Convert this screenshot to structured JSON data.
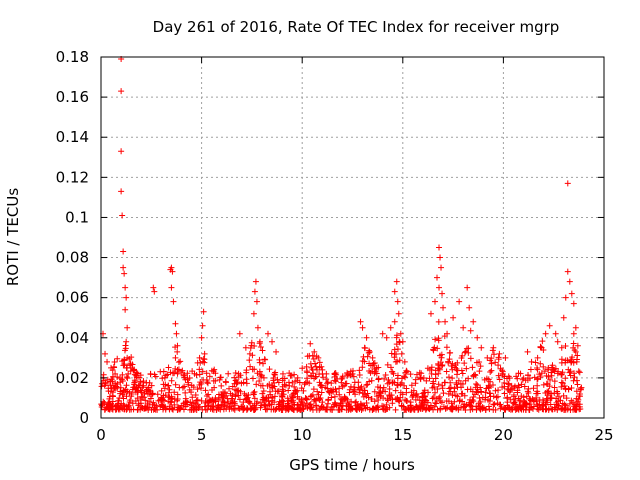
{
  "chart_data": {
    "type": "scatter",
    "title": "Day 261 of 2016, Rate Of TEC Index for receiver mgrp",
    "xlabel": "GPS time / hours",
    "ylabel": "ROTI / TECUs",
    "xlim": [
      0,
      25
    ],
    "ylim": [
      0,
      0.18
    ],
    "xticks": [
      "0",
      "5",
      "10",
      "15",
      "20",
      "25"
    ],
    "yticks": [
      "0",
      "0.02",
      "0.04",
      "0.06",
      "0.08",
      "0.1",
      "0.12",
      "0.14",
      "0.16",
      "0.18"
    ],
    "grid": true,
    "marker": "+",
    "colors": {
      "points": "#ff0000",
      "grid": "#a0a0a0",
      "axis": "#000000"
    },
    "series": [
      {
        "name": "ROTI",
        "points": [
          [
            1.0,
            0.179
          ],
          [
            1.0,
            0.163
          ],
          [
            1.0,
            0.133
          ],
          [
            1.0,
            0.113
          ],
          [
            1.05,
            0.101
          ],
          [
            1.1,
            0.083
          ],
          [
            1.1,
            0.075
          ],
          [
            1.15,
            0.072
          ],
          [
            1.2,
            0.065
          ],
          [
            1.25,
            0.06
          ],
          [
            1.2,
            0.054
          ],
          [
            1.3,
            0.045
          ],
          [
            1.25,
            0.038
          ],
          [
            1.3,
            0.03
          ],
          [
            1.35,
            0.022
          ],
          [
            2.6,
            0.065
          ],
          [
            2.65,
            0.063
          ],
          [
            3.45,
            0.074
          ],
          [
            3.5,
            0.075
          ],
          [
            3.55,
            0.073
          ],
          [
            3.5,
            0.065
          ],
          [
            3.6,
            0.058
          ],
          [
            3.7,
            0.047
          ],
          [
            3.75,
            0.042
          ],
          [
            3.8,
            0.036
          ],
          [
            3.7,
            0.03
          ],
          [
            5.1,
            0.053
          ],
          [
            5.05,
            0.046
          ],
          [
            5.0,
            0.04
          ],
          [
            5.15,
            0.032
          ],
          [
            4.9,
            0.03
          ],
          [
            6.9,
            0.042
          ],
          [
            7.2,
            0.035
          ],
          [
            7.4,
            0.032
          ],
          [
            7.7,
            0.068
          ],
          [
            7.65,
            0.063
          ],
          [
            7.75,
            0.058
          ],
          [
            7.6,
            0.052
          ],
          [
            7.8,
            0.045
          ],
          [
            7.9,
            0.038
          ],
          [
            8.3,
            0.042
          ],
          [
            8.5,
            0.038
          ],
          [
            8.7,
            0.033
          ],
          [
            10.4,
            0.037
          ],
          [
            10.6,
            0.033
          ],
          [
            10.8,
            0.03
          ],
          [
            11.0,
            0.024
          ],
          [
            11.2,
            0.022
          ],
          [
            12.0,
            0.02
          ],
          [
            12.5,
            0.022
          ],
          [
            12.9,
            0.048
          ],
          [
            13.0,
            0.045
          ],
          [
            13.2,
            0.04
          ],
          [
            13.1,
            0.035
          ],
          [
            13.5,
            0.03
          ],
          [
            13.7,
            0.025
          ],
          [
            14.0,
            0.042
          ],
          [
            14.2,
            0.04
          ],
          [
            14.4,
            0.045
          ],
          [
            14.6,
            0.063
          ],
          [
            14.7,
            0.068
          ],
          [
            14.75,
            0.058
          ],
          [
            14.8,
            0.052
          ],
          [
            14.6,
            0.048
          ],
          [
            14.9,
            0.042
          ],
          [
            15.0,
            0.038
          ],
          [
            14.95,
            0.032
          ],
          [
            15.1,
            0.028
          ],
          [
            16.4,
            0.052
          ],
          [
            16.6,
            0.058
          ],
          [
            16.7,
            0.07
          ],
          [
            16.8,
            0.085
          ],
          [
            16.85,
            0.08
          ],
          [
            16.9,
            0.075
          ],
          [
            16.8,
            0.065
          ],
          [
            16.95,
            0.062
          ],
          [
            17.0,
            0.055
          ],
          [
            17.1,
            0.048
          ],
          [
            17.2,
            0.042
          ],
          [
            17.5,
            0.05
          ],
          [
            17.8,
            0.058
          ],
          [
            18.0,
            0.045
          ],
          [
            18.2,
            0.065
          ],
          [
            18.3,
            0.055
          ],
          [
            18.5,
            0.048
          ],
          [
            18.7,
            0.04
          ],
          [
            18.9,
            0.035
          ],
          [
            19.2,
            0.03
          ],
          [
            19.5,
            0.035
          ],
          [
            19.8,
            0.032
          ],
          [
            20.1,
            0.03
          ],
          [
            21.2,
            0.033
          ],
          [
            21.4,
            0.028
          ],
          [
            21.7,
            0.03
          ],
          [
            21.9,
            0.035
          ],
          [
            22.1,
            0.042
          ],
          [
            22.3,
            0.046
          ],
          [
            22.6,
            0.042
          ],
          [
            22.7,
            0.038
          ],
          [
            22.9,
            0.035
          ],
          [
            23.0,
            0.05
          ],
          [
            23.1,
            0.06
          ],
          [
            23.2,
            0.073
          ],
          [
            23.3,
            0.068
          ],
          [
            23.2,
            0.117
          ],
          [
            23.4,
            0.062
          ],
          [
            23.5,
            0.057
          ],
          [
            23.6,
            0.045
          ],
          [
            23.7,
            0.036
          ],
          [
            23.5,
            0.042
          ],
          [
            0.1,
            0.042
          ],
          [
            0.2,
            0.032
          ],
          [
            0.3,
            0.028
          ],
          [
            0.5,
            0.025
          ],
          [
            0.7,
            0.022
          ]
        ]
      }
    ]
  }
}
